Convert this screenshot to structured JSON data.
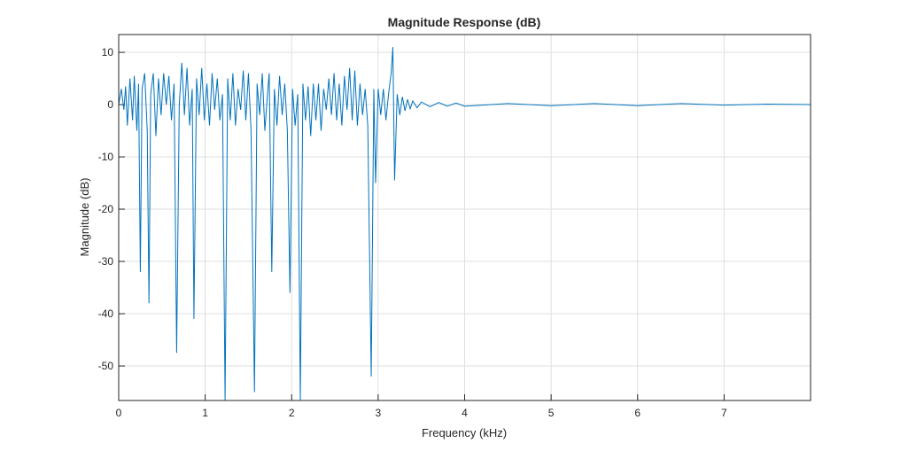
{
  "chart_data": {
    "type": "line",
    "title": "Magnitude Response (dB)",
    "x_label": "Frequency (kHz)",
    "y_label": "Magnitude (dB)",
    "color": "#0072bd",
    "grid": true,
    "xlim": [
      0,
      8
    ],
    "xticks": [
      0,
      1,
      2,
      3,
      4,
      5,
      6,
      7
    ],
    "ylim": [
      -56.6,
      13.4
    ],
    "yticks": [
      -50,
      -40,
      -30,
      -20,
      -10,
      0,
      10
    ],
    "x": [
      0,
      0.03,
      0.06,
      0.08,
      0.1,
      0.13,
      0.16,
      0.18,
      0.21,
      0.23,
      0.25,
      0.27,
      0.3,
      0.33,
      0.35,
      0.37,
      0.4,
      0.43,
      0.46,
      0.49,
      0.52,
      0.55,
      0.58,
      0.61,
      0.64,
      0.67,
      0.7,
      0.73,
      0.76,
      0.79,
      0.82,
      0.85,
      0.87,
      0.9,
      0.93,
      0.96,
      0.99,
      1.02,
      1.05,
      1.08,
      1.11,
      1.14,
      1.17,
      1.2,
      1.23,
      1.26,
      1.29,
      1.32,
      1.35,
      1.38,
      1.41,
      1.44,
      1.47,
      1.5,
      1.53,
      1.57,
      1.6,
      1.63,
      1.66,
      1.69,
      1.72,
      1.74,
      1.77,
      1.8,
      1.83,
      1.86,
      1.89,
      1.92,
      1.95,
      1.98,
      2.01,
      2.04,
      2.07,
      2.1,
      2.13,
      2.16,
      2.19,
      2.22,
      2.25,
      2.28,
      2.31,
      2.34,
      2.37,
      2.4,
      2.43,
      2.46,
      2.49,
      2.52,
      2.55,
      2.58,
      2.61,
      2.64,
      2.67,
      2.7,
      2.73,
      2.76,
      2.79,
      2.82,
      2.85,
      2.88,
      2.92,
      2.95,
      2.97,
      3.0,
      3.03,
      3.06,
      3.09,
      3.12,
      3.15,
      3.17,
      3.19,
      3.22,
      3.25,
      3.28,
      3.31,
      3.34,
      3.37,
      3.4,
      3.45,
      3.5,
      3.6,
      3.7,
      3.8,
      3.9,
      4.0,
      4.5,
      5.0,
      5.5,
      6.0,
      6.5,
      7.0,
      7.5,
      8.0
    ],
    "values": [
      0,
      3,
      -1,
      3.5,
      -4,
      5,
      -3,
      5.5,
      -5,
      4,
      -32,
      3,
      6,
      -5,
      -38,
      2,
      6,
      -6,
      5,
      -2,
      6,
      0,
      5.5,
      -3,
      4,
      -47.5,
      0,
      8,
      -2,
      7,
      -4,
      3,
      -41,
      5,
      -2,
      7,
      -3,
      4,
      -4,
      6,
      -1,
      5,
      -3,
      2,
      -56.6,
      5,
      -3,
      6,
      -4,
      3,
      -1,
      6.5,
      -3,
      6,
      -5,
      -55,
      4,
      -2,
      6,
      -5,
      2,
      6,
      -32,
      3,
      -4,
      5.5,
      -2,
      4,
      -5,
      -36,
      3,
      -4,
      2,
      -56.6,
      4,
      -3,
      3.5,
      -6,
      4,
      -3,
      4,
      -5,
      3,
      -1,
      5,
      -2,
      6,
      -3,
      4,
      -4,
      5.5,
      -1,
      7,
      -3,
      6.5,
      -4,
      4,
      -2,
      3,
      -4,
      -52,
      3,
      -15,
      3,
      -2,
      3,
      -3,
      2,
      6,
      11,
      -14.5,
      2,
      -2,
      1.5,
      -1.2,
      1,
      -0.8,
      0.7,
      -0.6,
      0.5,
      -0.4,
      0.4,
      -0.3,
      0.3,
      -0.3,
      0.2,
      -0.2,
      0.2,
      -0.2,
      0.2,
      -0.1,
      0.1,
      0
    ]
  }
}
